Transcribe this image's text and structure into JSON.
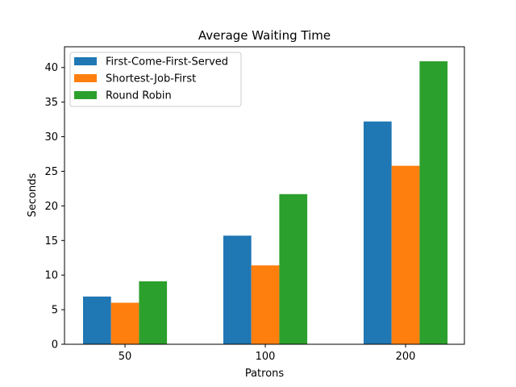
{
  "chart_data": {
    "type": "bar",
    "title": "Average Waiting Time",
    "xlabel": "Patrons",
    "ylabel": "Seconds",
    "categories": [
      "50",
      "100",
      "200"
    ],
    "ylim": [
      0,
      43
    ],
    "yticks": [
      0,
      5,
      10,
      15,
      20,
      25,
      30,
      35,
      40
    ],
    "grid": false,
    "legend_position": "top-left",
    "series": [
      {
        "name": "First-Come-First-Served",
        "color": "#1f77b4",
        "values": [
          6.9,
          15.7,
          32.2
        ]
      },
      {
        "name": "Shortest-Job-First",
        "color": "#ff7f0e",
        "values": [
          6.0,
          11.4,
          25.8
        ]
      },
      {
        "name": "Round Robin",
        "color": "#2ca02c",
        "values": [
          9.1,
          21.7,
          40.9
        ]
      }
    ]
  }
}
